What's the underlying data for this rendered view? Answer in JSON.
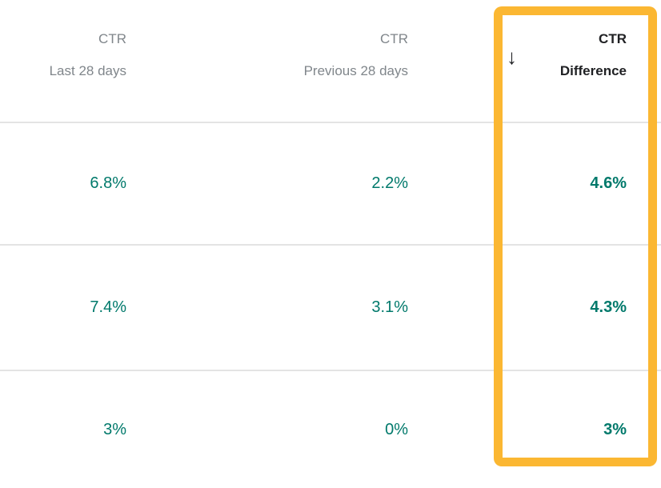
{
  "table": {
    "columns": [
      {
        "id": "ctr_last",
        "line1": "CTR",
        "line2": "Last 28 days",
        "sorted": false
      },
      {
        "id": "ctr_prev",
        "line1": "CTR",
        "line2": "Previous 28 days",
        "sorted": false
      },
      {
        "id": "ctr_diff",
        "line1": "CTR",
        "line2": "Difference",
        "sorted": true
      }
    ],
    "rows": [
      {
        "ctr_last": "6.8%",
        "ctr_prev": "2.2%",
        "ctr_diff": "4.6%"
      },
      {
        "ctr_last": "7.4%",
        "ctr_prev": "3.1%",
        "ctr_diff": "4.3%"
      },
      {
        "ctr_last": "3%",
        "ctr_prev": "0%",
        "ctr_diff": "3%"
      }
    ]
  },
  "icons": {
    "sort_descending": "↓"
  },
  "highlight": {
    "target_column": "ctr_diff"
  },
  "colors": {
    "value_teal": "#00796B",
    "highlight_orange": "#FBB732",
    "header_gray": "#80868B",
    "header_black": "#202124",
    "separator": "#E4E4E4",
    "background": "#FFFFFF"
  }
}
